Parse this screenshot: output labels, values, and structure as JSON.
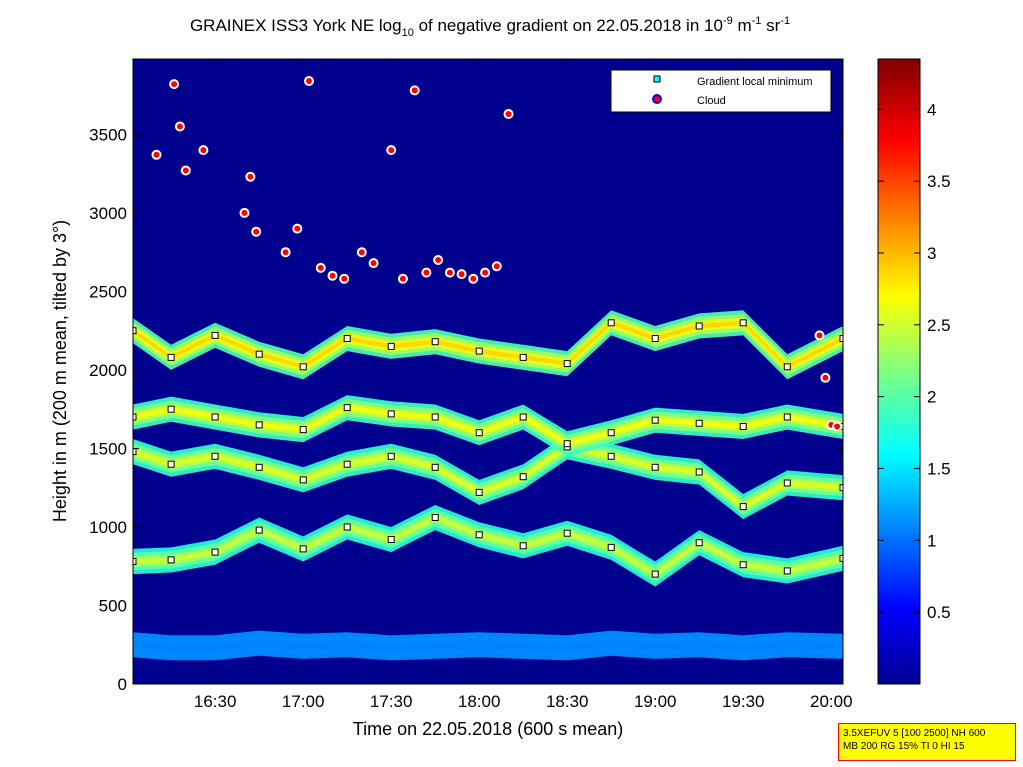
{
  "chart_data": {
    "type": "heatmap",
    "title_parts": {
      "prefix": "GRAINEX ISS3 York NE log",
      "prefix_sub": "10",
      "middle": " of negative gradient on 22.05.2018 in 10",
      "exp1": "-9",
      "unit1": " m",
      "exp2": "-1",
      "unit2": " sr",
      "exp3": "-1"
    },
    "xlabel": "Time on 22.05.2018 (600 s mean)",
    "ylabel": "Height in m (200 m mean, tilted by 3°)",
    "x_ticks": [
      "16:30",
      "17:00",
      "17:30",
      "18:00",
      "18:30",
      "19:00",
      "19:30",
      "20:00"
    ],
    "x_tick_minutes": [
      990,
      1020,
      1050,
      1080,
      1110,
      1140,
      1170,
      1200
    ],
    "x_range_minutes": [
      962,
      1204
    ],
    "y_ticks": [
      "0",
      "500",
      "1000",
      "1500",
      "2000",
      "2500",
      "3000",
      "3500"
    ],
    "y_tick_values": [
      0,
      500,
      1000,
      1500,
      2000,
      2500,
      3000,
      3500
    ],
    "ylim": [
      0,
      3980
    ],
    "colorbar": {
      "ticks": [
        "0.5",
        "1",
        "1.5",
        "2",
        "2.5",
        "3",
        "3.5",
        "4"
      ],
      "tick_values": [
        0.5,
        1,
        1.5,
        2,
        2.5,
        3,
        3.5,
        4
      ],
      "range": [
        0,
        4.35
      ],
      "colormap": "jet"
    },
    "legend": {
      "placement": "top-right",
      "entries": [
        {
          "label": "Gradient local minimum",
          "marker": "square",
          "color": "#00ffff"
        },
        {
          "label": "Cloud",
          "marker": "circle",
          "color": "#ff0000",
          "edge": "#0000ff"
        }
      ]
    },
    "layers": [
      {
        "minutes": [
          962,
          975,
          990,
          1005,
          1020,
          1035,
          1050,
          1065,
          1080,
          1095,
          1110,
          1125,
          1140,
          1155,
          1170,
          1185,
          1204
        ],
        "heights": [
          250,
          230,
          230,
          260,
          240,
          250,
          230,
          240,
          250,
          240,
          230,
          260,
          240,
          250,
          230,
          250,
          240
        ],
        "level": 1.1
      },
      {
        "minutes": [
          962,
          975,
          990,
          1005,
          1020,
          1035,
          1050,
          1065,
          1080,
          1095,
          1110,
          1125,
          1140,
          1155,
          1170,
          1185,
          1204
        ],
        "heights": [
          780,
          790,
          840,
          980,
          860,
          1000,
          920,
          1060,
          950,
          880,
          960,
          870,
          700,
          900,
          760,
          720,
          800
        ],
        "level": 2.5
      },
      {
        "minutes": [
          962,
          975,
          990,
          1005,
          1020,
          1035,
          1050,
          1065,
          1080,
          1095,
          1110,
          1125,
          1140,
          1155,
          1170,
          1185,
          1204
        ],
        "heights": [
          1480,
          1400,
          1450,
          1380,
          1300,
          1400,
          1450,
          1380,
          1220,
          1320,
          1510,
          1450,
          1380,
          1350,
          1130,
          1280,
          1250
        ],
        "level": 2.6
      },
      {
        "minutes": [
          962,
          975,
          990,
          1005,
          1020,
          1035,
          1050,
          1065,
          1080,
          1095,
          1110,
          1125,
          1140,
          1155,
          1170,
          1185,
          1204
        ],
        "heights": [
          1700,
          1750,
          1700,
          1650,
          1620,
          1760,
          1720,
          1700,
          1600,
          1700,
          1530,
          1600,
          1680,
          1660,
          1640,
          1700,
          1640
        ],
        "level": 2.7
      },
      {
        "minutes": [
          962,
          975,
          990,
          1005,
          1020,
          1035,
          1050,
          1065,
          1080,
          1095,
          1110,
          1125,
          1140,
          1155,
          1170,
          1185,
          1204
        ],
        "heights": [
          2250,
          2080,
          2220,
          2100,
          2020,
          2200,
          2150,
          2180,
          2120,
          2080,
          2040,
          2300,
          2200,
          2280,
          2300,
          2020,
          2200
        ],
        "level": 2.9
      }
    ],
    "gradient_minimum_series": [
      {
        "minutes": [
          962,
          975,
          990,
          1005,
          1020,
          1035,
          1050,
          1065,
          1080,
          1095,
          1110,
          1125,
          1140,
          1155,
          1170,
          1185,
          1204
        ],
        "heights": [
          780,
          790,
          840,
          980,
          860,
          1000,
          920,
          1060,
          950,
          880,
          960,
          870,
          700,
          900,
          760,
          720,
          800
        ]
      },
      {
        "minutes": [
          962,
          975,
          990,
          1005,
          1020,
          1035,
          1050,
          1065,
          1080,
          1095,
          1110,
          1125,
          1140,
          1155,
          1170,
          1185,
          1204
        ],
        "heights": [
          1480,
          1400,
          1450,
          1380,
          1300,
          1400,
          1450,
          1380,
          1220,
          1320,
          1510,
          1450,
          1380,
          1350,
          1130,
          1280,
          1250
        ]
      },
      {
        "minutes": [
          962,
          975,
          990,
          1005,
          1020,
          1035,
          1050,
          1065,
          1080,
          1095,
          1110,
          1125,
          1140,
          1155,
          1170,
          1185,
          1204
        ],
        "heights": [
          1700,
          1750,
          1700,
          1650,
          1620,
          1760,
          1720,
          1700,
          1600,
          1700,
          1530,
          1600,
          1680,
          1660,
          1640,
          1700,
          1640
        ]
      },
      {
        "minutes": [
          962,
          975,
          990,
          1005,
          1020,
          1035,
          1050,
          1065,
          1080,
          1095,
          1110,
          1125,
          1140,
          1155,
          1170,
          1185,
          1204
        ],
        "heights": [
          2250,
          2080,
          2220,
          2100,
          2020,
          2200,
          2150,
          2180,
          2120,
          2080,
          2040,
          2300,
          2200,
          2280,
          2300,
          2020,
          2200
        ]
      }
    ],
    "cloud_points": {
      "minutes": [
        970,
        976,
        978,
        980,
        986,
        1000,
        1002,
        1004,
        1014,
        1018,
        1022,
        1026,
        1030,
        1034,
        1040,
        1044,
        1050,
        1054,
        1058,
        1062,
        1066,
        1070,
        1074,
        1078,
        1082,
        1086,
        1090,
        1196,
        1198,
        1200,
        1202
      ],
      "heights": [
        3370,
        3820,
        3550,
        3270,
        3400,
        3000,
        3230,
        2880,
        2750,
        2900,
        3840,
        2650,
        2600,
        2580,
        2750,
        2680,
        3400,
        2580,
        3780,
        2620,
        2700,
        2620,
        2610,
        2580,
        2620,
        2660,
        3630,
        2220,
        1950,
        1650,
        1640
      ]
    },
    "footnote": [
      "3.5XEFUV 5 [100 2500] NH 600",
      "MB 200 RG 15% TI 0 HI 15"
    ]
  }
}
